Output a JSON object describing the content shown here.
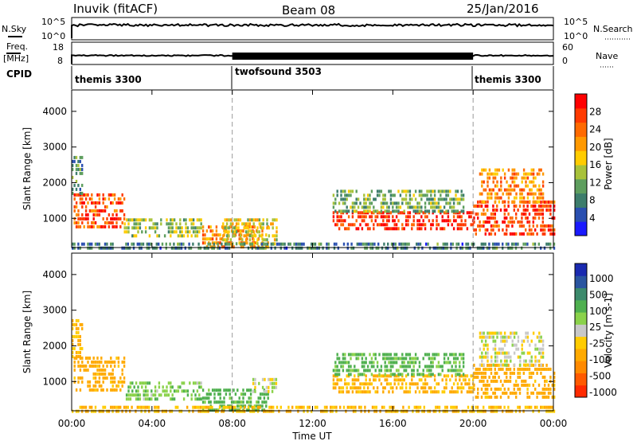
{
  "header": {
    "title": "Inuvik (fitACF)",
    "beam": "Beam 08",
    "date": "25/Jan/2016"
  },
  "strip_labels": {
    "nsky": "N.Sky",
    "nsearch": "N.Search",
    "freq_line1": "Freq.",
    "freq_line2": "[MHz]",
    "nave": "Nave",
    "cpid": "CPID",
    "noise_top_left": "10^5",
    "noise_bot_left": "10^0",
    "noise_top_right": "10^5",
    "noise_bot_right": "10^0",
    "freq_top": "18",
    "freq_bot": "8",
    "nave_top": "60",
    "nave_bot": "0"
  },
  "cpid_segments": [
    {
      "label": "themis 3300",
      "start_hour": 0,
      "end_hour": 8
    },
    {
      "label": "twofsound 3503",
      "start_hour": 8,
      "end_hour": 20
    },
    {
      "label": "themis 3300",
      "start_hour": 20,
      "end_hour": 24
    }
  ],
  "x_axis": {
    "label": "Time UT",
    "ticks": [
      "00:00",
      "04:00",
      "08:00",
      "12:00",
      "16:00",
      "20:00",
      "00:00"
    ],
    "range_hours": [
      0,
      24
    ]
  },
  "y_axis": {
    "label": "Slant Range [km]",
    "ticks": [
      "1000",
      "2000",
      "3000",
      "4000"
    ],
    "range_km": [
      180,
      4600
    ]
  },
  "colorbars": {
    "power": {
      "label": "Power [dB]",
      "ticks": [
        "4",
        "8",
        "12",
        "16",
        "20",
        "24",
        "28"
      ],
      "colors": [
        "#1a1aff",
        "#2a4fb0",
        "#3d7d6c",
        "#5e9e5e",
        "#a8c23a",
        "#ffcc00",
        "#ff9900",
        "#ff6a00",
        "#ff3a00",
        "#ff0000"
      ]
    },
    "velocity": {
      "label": "Velocity [m s-1]",
      "ticks": [
        "1000",
        "500",
        "100",
        "25",
        "-25",
        "-100",
        "-500",
        "-1000"
      ],
      "colors": [
        "#1a2ab0",
        "#2a55a0",
        "#3c8a6c",
        "#4fb04f",
        "#8ad24a",
        "#c8c8c8",
        "#ffcc00",
        "#ffaa00",
        "#ff8a00",
        "#ff5a00",
        "#ff2a00"
      ]
    }
  },
  "chart_data": [
    {
      "type": "heatmap",
      "title": "",
      "xlabel": "Time UT",
      "ylabel": "Slant Range [km]",
      "colorbar_label": "Power [dB]",
      "xlim_hours": [
        0,
        24
      ],
      "ylim_km": [
        180,
        4600
      ],
      "grid": false,
      "regions": [
        {
          "t0": 0.1,
          "t1": 2.6,
          "r0": 700,
          "r1": 1700,
          "value": 26
        },
        {
          "t0": 0.0,
          "t1": 0.5,
          "r0": 1700,
          "r1": 2750,
          "value": 10
        },
        {
          "t0": 2.6,
          "t1": 6.5,
          "r0": 500,
          "r1": 1000,
          "value": 14
        },
        {
          "t0": 6.5,
          "t1": 9.8,
          "r0": 200,
          "r1": 800,
          "value": 22
        },
        {
          "t0": 7.5,
          "t1": 10.2,
          "r0": 300,
          "r1": 1000,
          "value": 16
        },
        {
          "t0": 13.0,
          "t1": 20.0,
          "r0": 700,
          "r1": 1200,
          "value": 28
        },
        {
          "t0": 13.0,
          "t1": 19.5,
          "r0": 1200,
          "r1": 1800,
          "value": 12
        },
        {
          "t0": 20.0,
          "t1": 24.0,
          "r0": 600,
          "r1": 1500,
          "value": 27
        },
        {
          "t0": 20.3,
          "t1": 23.5,
          "r0": 1500,
          "r1": 2400,
          "value": 22
        },
        {
          "t0": 0.0,
          "t1": 24.0,
          "r0": 180,
          "r1": 320,
          "value": 8
        }
      ]
    },
    {
      "type": "heatmap",
      "title": "",
      "xlabel": "Time UT",
      "ylabel": "Slant Range [km]",
      "colorbar_label": "Velocity [m s-1]",
      "xlim_hours": [
        0,
        24
      ],
      "ylim_km": [
        180,
        4600
      ],
      "grid": false,
      "regions": [
        {
          "t0": 0.1,
          "t1": 2.6,
          "r0": 700,
          "r1": 1700,
          "value": -150
        },
        {
          "t0": 0.0,
          "t1": 0.5,
          "r0": 1700,
          "r1": 2750,
          "value": -100
        },
        {
          "t0": 2.6,
          "t1": 6.5,
          "r0": 500,
          "r1": 1000,
          "value": 80
        },
        {
          "t0": 6.5,
          "t1": 9.8,
          "r0": 200,
          "r1": 800,
          "value": 150
        },
        {
          "t0": 9.0,
          "t1": 10.2,
          "r0": 700,
          "r1": 1100,
          "value": 0
        },
        {
          "t0": 13.0,
          "t1": 20.0,
          "r0": 700,
          "r1": 1200,
          "value": -120
        },
        {
          "t0": 13.0,
          "t1": 19.5,
          "r0": 1200,
          "r1": 1800,
          "value": 120
        },
        {
          "t0": 20.0,
          "t1": 24.0,
          "r0": 600,
          "r1": 1500,
          "value": -150
        },
        {
          "t0": 20.3,
          "t1": 23.5,
          "r0": 1500,
          "r1": 2400,
          "value": 0
        },
        {
          "t0": 0.0,
          "t1": 24.0,
          "r0": 180,
          "r1": 320,
          "value": -100
        }
      ]
    }
  ]
}
